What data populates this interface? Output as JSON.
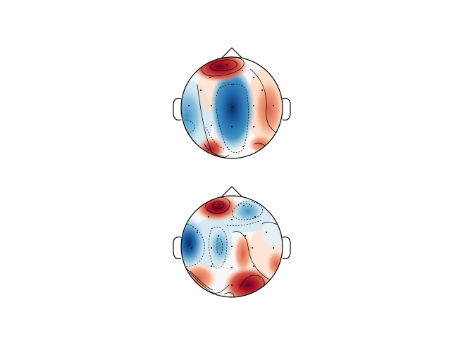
{
  "figure": {
    "type": "eeg-topomap",
    "colormap": "RdBu_r",
    "colors": {
      "positive_strong": "#67001f",
      "positive": "#d6604d",
      "positive_light": "#fddbc7",
      "neutral": "#f7f7f7",
      "negative_light": "#d1e5f0",
      "negative": "#4393c3",
      "negative_strong": "#053061",
      "outline": "#000000"
    },
    "head_shapes": [
      "head-outline-icon",
      "nose-icon",
      "left-ear-icon",
      "right-ear-icon"
    ],
    "topomaps": [
      {
        "name": "topomap-1",
        "sensor_count": 16,
        "regions": [
          {
            "polarity": "positive",
            "strength": 0.95,
            "area": "frontal"
          },
          {
            "polarity": "negative",
            "strength": 0.95,
            "area": "central-parietal"
          },
          {
            "polarity": "negative",
            "strength": 0.4,
            "area": "left-temporal"
          },
          {
            "polarity": "positive",
            "strength": 0.6,
            "area": "right-central"
          },
          {
            "polarity": "positive",
            "strength": 0.7,
            "area": "left-occipital"
          },
          {
            "polarity": "positive",
            "strength": 0.45,
            "area": "right-occipital"
          }
        ]
      },
      {
        "name": "topomap-2",
        "sensor_count": 18,
        "regions": [
          {
            "polarity": "positive",
            "strength": 0.95,
            "area": "frontal"
          },
          {
            "polarity": "negative",
            "strength": 0.5,
            "area": "frontal-right"
          },
          {
            "polarity": "negative",
            "strength": 0.9,
            "area": "left-temporal"
          },
          {
            "polarity": "negative",
            "strength": 0.5,
            "area": "central"
          },
          {
            "polarity": "positive",
            "strength": 0.6,
            "area": "right-central"
          },
          {
            "polarity": "positive",
            "strength": 0.95,
            "area": "right-occipital"
          },
          {
            "polarity": "positive",
            "strength": 0.55,
            "area": "left-occipital"
          },
          {
            "polarity": "negative",
            "strength": 0.3,
            "area": "right-temporal"
          }
        ]
      }
    ]
  }
}
